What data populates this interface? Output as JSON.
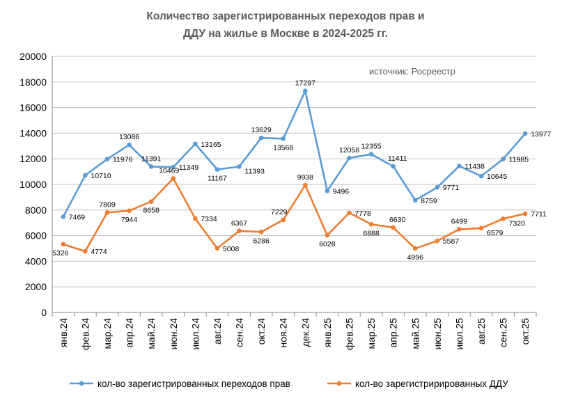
{
  "chart_data": {
    "type": "line",
    "title": [
      "Количество зарегистрированных переходов прав и",
      "ДДУ  на жилье в  Москве в 2024-2025 гг."
    ],
    "annotation": "источник: Росреестр",
    "xlabel": "",
    "ylabel": "",
    "ylim": [
      0,
      20000
    ],
    "yticks": [
      0,
      2000,
      4000,
      6000,
      8000,
      10000,
      12000,
      14000,
      16000,
      18000,
      20000
    ],
    "grid": true,
    "legend_position": "bottom",
    "categories": [
      "янв.24",
      "фев.24",
      "мар.24",
      "апр.24",
      "май.24",
      "июн.24",
      "июл.24",
      "авг.24",
      "сен.24",
      "окт.24",
      "ноя.24",
      "дек.24",
      "янв.25",
      "фев.25",
      "мар.25",
      "апр.25",
      "май.25",
      "июн.25",
      "июл.25",
      "авг.25",
      "сен.25",
      "окт.25"
    ],
    "series": [
      {
        "name": "кол-во зарегистрированных переходов прав",
        "color": "#5B9BD5",
        "values": [
          7469,
          10710,
          11976,
          13086,
          11391,
          11349,
          13165,
          11167,
          11393,
          13629,
          13568,
          17297,
          9496,
          12058,
          12355,
          11411,
          8759,
          9771,
          11438,
          10645,
          11985,
          13977
        ]
      },
      {
        "name": "кол-во зарегистрирированных ДДУ",
        "color": "#ED7D31",
        "values": [
          5326,
          4774,
          7809,
          7944,
          8658,
          10469,
          7334,
          5008,
          6367,
          6286,
          7229,
          9938,
          6028,
          7778,
          6888,
          6630,
          4996,
          5587,
          6499,
          6579,
          7320,
          7711
        ]
      }
    ]
  }
}
